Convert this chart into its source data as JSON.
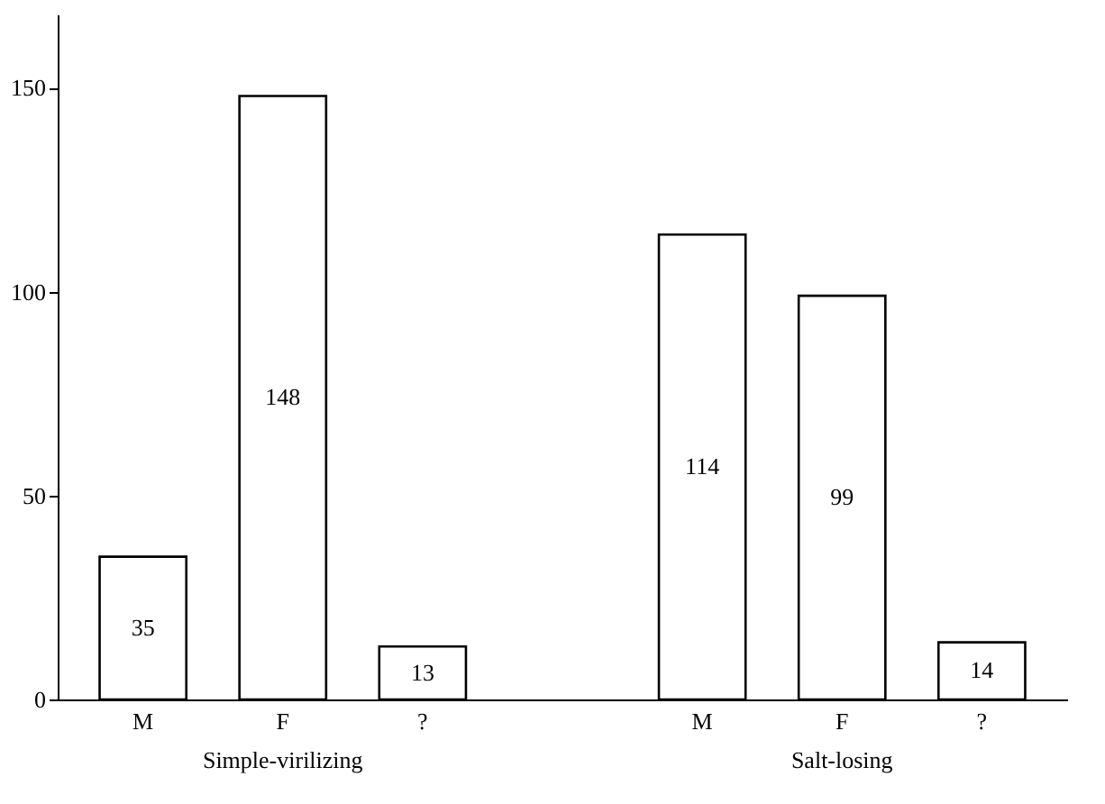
{
  "chart_data": {
    "type": "bar",
    "categories": [
      "M",
      "F",
      "?",
      null,
      "M",
      "F",
      "?"
    ],
    "values": [
      35,
      148,
      13,
      null,
      114,
      99,
      14
    ],
    "color": "#ffffff",
    "ylim": [
      0,
      168
    ],
    "yticks": [
      0,
      50,
      100,
      150
    ],
    "grid": false,
    "data_labels": true,
    "annotations": [
      "Simple-virilizing",
      "Salt-losing"
    ]
  }
}
